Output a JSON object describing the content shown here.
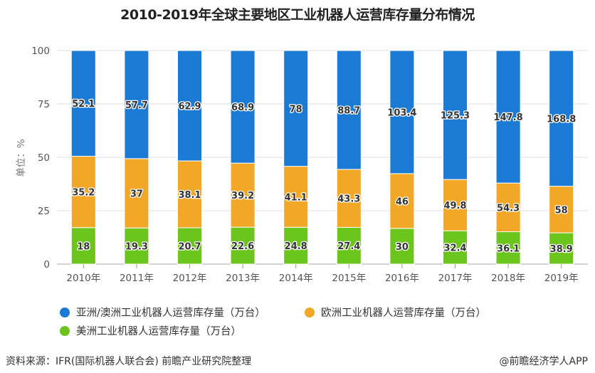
{
  "chart_data": {
    "type": "bar",
    "stacked": true,
    "normalized_percent": true,
    "title": "2010-2019年全球主要地区工业机器人运营库存量分布情况",
    "xlabel": "",
    "ylabel": "单位：%",
    "ylim": [
      0,
      100
    ],
    "yticks": [
      0,
      25,
      50,
      75,
      100
    ],
    "grid": true,
    "legend_position": "bottom",
    "categories": [
      "2010年",
      "2011年",
      "2012年",
      "2013年",
      "2014年",
      "2015年",
      "2016年",
      "2017年",
      "2018年",
      "2019年"
    ],
    "series": [
      {
        "name": "美洲工业机器人运营库存量（万台）",
        "color": "#6cc51d",
        "values": [
          18,
          19.3,
          20.7,
          22.6,
          24.8,
          27.4,
          30,
          32.4,
          36.1,
          38.9
        ]
      },
      {
        "name": "欧洲工业机器人运营库存量（万台）",
        "color": "#f2a726",
        "values": [
          35.2,
          37,
          38.1,
          39.2,
          41.1,
          43.3,
          46,
          49.8,
          54.3,
          58
        ]
      },
      {
        "name": "亚洲/澳洲工业机器人运营库存量（万台）",
        "color": "#1a7ad4",
        "values": [
          52.1,
          57.7,
          62.9,
          68.9,
          78,
          88.7,
          103.4,
          125.3,
          147.8,
          168.8
        ]
      }
    ]
  },
  "legend": {
    "asia": "亚洲/澳洲工业机器人运营库存量（万台）",
    "europe": "欧洲工业机器人运营库存量（万台）",
    "america": "美洲工业机器人运营库存量（万台）"
  },
  "footer": {
    "source": "资料来源：IFR(国际机器人联合会) 前瞻产业研究院整理",
    "brand": "@前瞻经济学人APP"
  }
}
